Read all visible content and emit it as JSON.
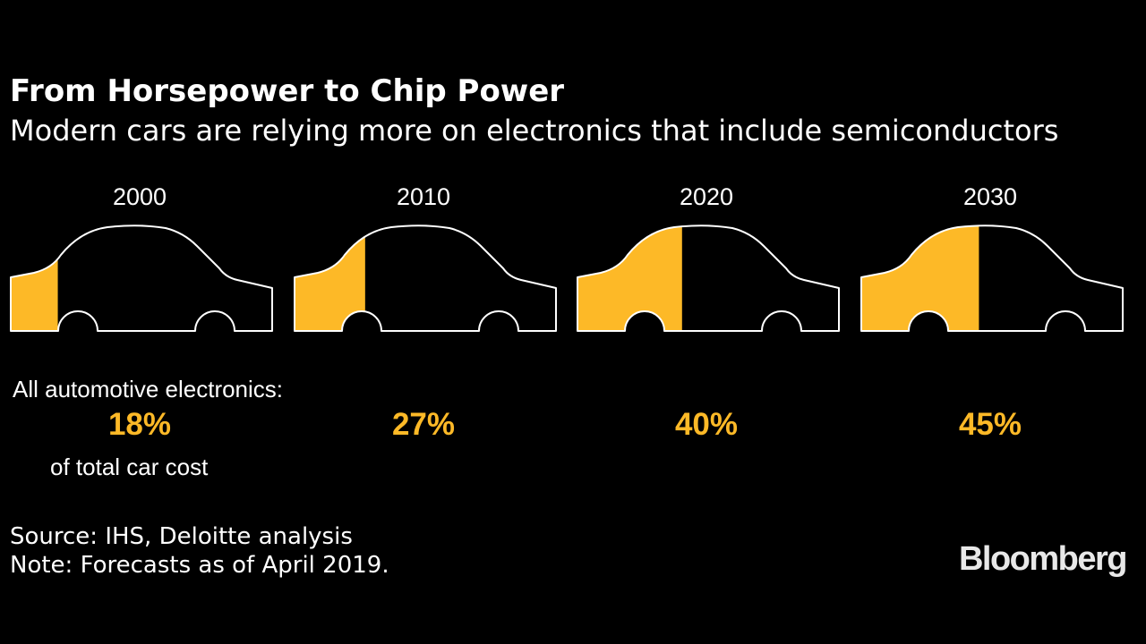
{
  "title": "From Horsepower to Chip Power",
  "subtitle": "Modern cars are relying more on electronics that include semiconductors",
  "chart_data": {
    "type": "pictogram",
    "metric_intro": "All automotive electronics:",
    "metric_unit": "of total car cost",
    "categories": [
      "2000",
      "2010",
      "2020",
      "2030"
    ],
    "values": [
      18,
      27,
      40,
      45
    ],
    "value_labels": [
      "18%",
      "27%",
      "40%",
      "45%"
    ],
    "unit": "%",
    "ylim": [
      0,
      100
    ]
  },
  "source": "Source: IHS, Deloitte analysis",
  "note": "Note: Forecasts as of April 2019.",
  "brand": "Bloomberg",
  "colors": {
    "background": "#000000",
    "accent": "#fdb927",
    "text": "#ffffff",
    "outline": "#ffffff"
  }
}
